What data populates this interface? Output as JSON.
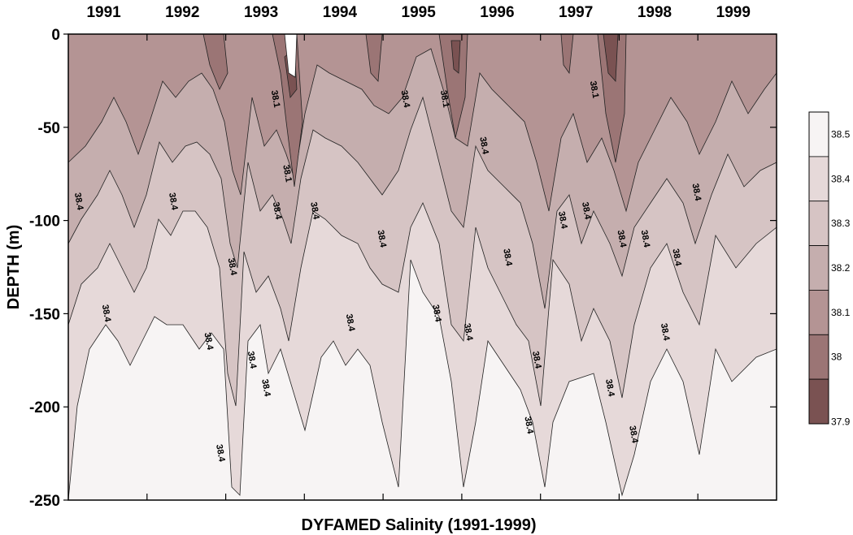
{
  "chart_data": {
    "type": "heatmap",
    "title": "",
    "xlabel": "DYFAMED Salinity (1991-1999)",
    "ylabel": "DEPTH (m)",
    "top_labels": [
      "1991",
      "1992",
      "1993",
      "1994",
      "1995",
      "1996",
      "1997",
      "1998",
      "1999"
    ],
    "y_ticks": [
      0,
      -50,
      -100,
      -150,
      -200,
      -250
    ],
    "ylim": [
      -250,
      0
    ],
    "legend_levels": [
      38.5,
      38.4,
      38.3,
      38.2,
      38.1,
      38,
      37.9
    ],
    "legend_colors": [
      "#f7f4f4",
      "#e6d9d9",
      "#d6c4c4",
      "#c5aeae",
      "#b49494",
      "#9b7575",
      "#7a5252"
    ],
    "contour_label_text": "38.4",
    "contour_label_alt": "38.1",
    "profiles_38_4": [
      {
        "year": 1991.1,
        "depth": -90
      },
      {
        "year": 1991.45,
        "depth": -150
      },
      {
        "year": 1992.3,
        "depth": -90
      },
      {
        "year": 1992.75,
        "depth": -165
      },
      {
        "year": 1992.9,
        "depth": -225
      },
      {
        "year": 1993.05,
        "depth": -125
      },
      {
        "year": 1993.3,
        "depth": -175
      },
      {
        "year": 1993.48,
        "depth": -190
      },
      {
        "year": 1993.62,
        "depth": -95
      },
      {
        "year": 1994.1,
        "depth": -95
      },
      {
        "year": 1994.55,
        "depth": -155
      },
      {
        "year": 1994.95,
        "depth": -110
      },
      {
        "year": 1995.25,
        "depth": -35
      },
      {
        "year": 1995.65,
        "depth": -150
      },
      {
        "year": 1996.05,
        "depth": -160
      },
      {
        "year": 1996.25,
        "depth": -60
      },
      {
        "year": 1996.55,
        "depth": -120
      },
      {
        "year": 1996.82,
        "depth": -210
      },
      {
        "year": 1996.92,
        "depth": -175
      },
      {
        "year": 1997.25,
        "depth": -100
      },
      {
        "year": 1997.55,
        "depth": -95
      },
      {
        "year": 1997.85,
        "depth": -190
      },
      {
        "year": 1998.0,
        "depth": -110
      },
      {
        "year": 1998.15,
        "depth": -215
      },
      {
        "year": 1998.3,
        "depth": -110
      },
      {
        "year": 1998.55,
        "depth": -160
      },
      {
        "year": 1998.7,
        "depth": -120
      },
      {
        "year": 1998.95,
        "depth": -85
      }
    ],
    "profiles_38_1": [
      {
        "year": 1993.6,
        "depth": -35
      },
      {
        "year": 1993.75,
        "depth": -75
      },
      {
        "year": 1995.75,
        "depth": -35
      },
      {
        "year": 1997.65,
        "depth": -30
      }
    ],
    "grid": false
  }
}
